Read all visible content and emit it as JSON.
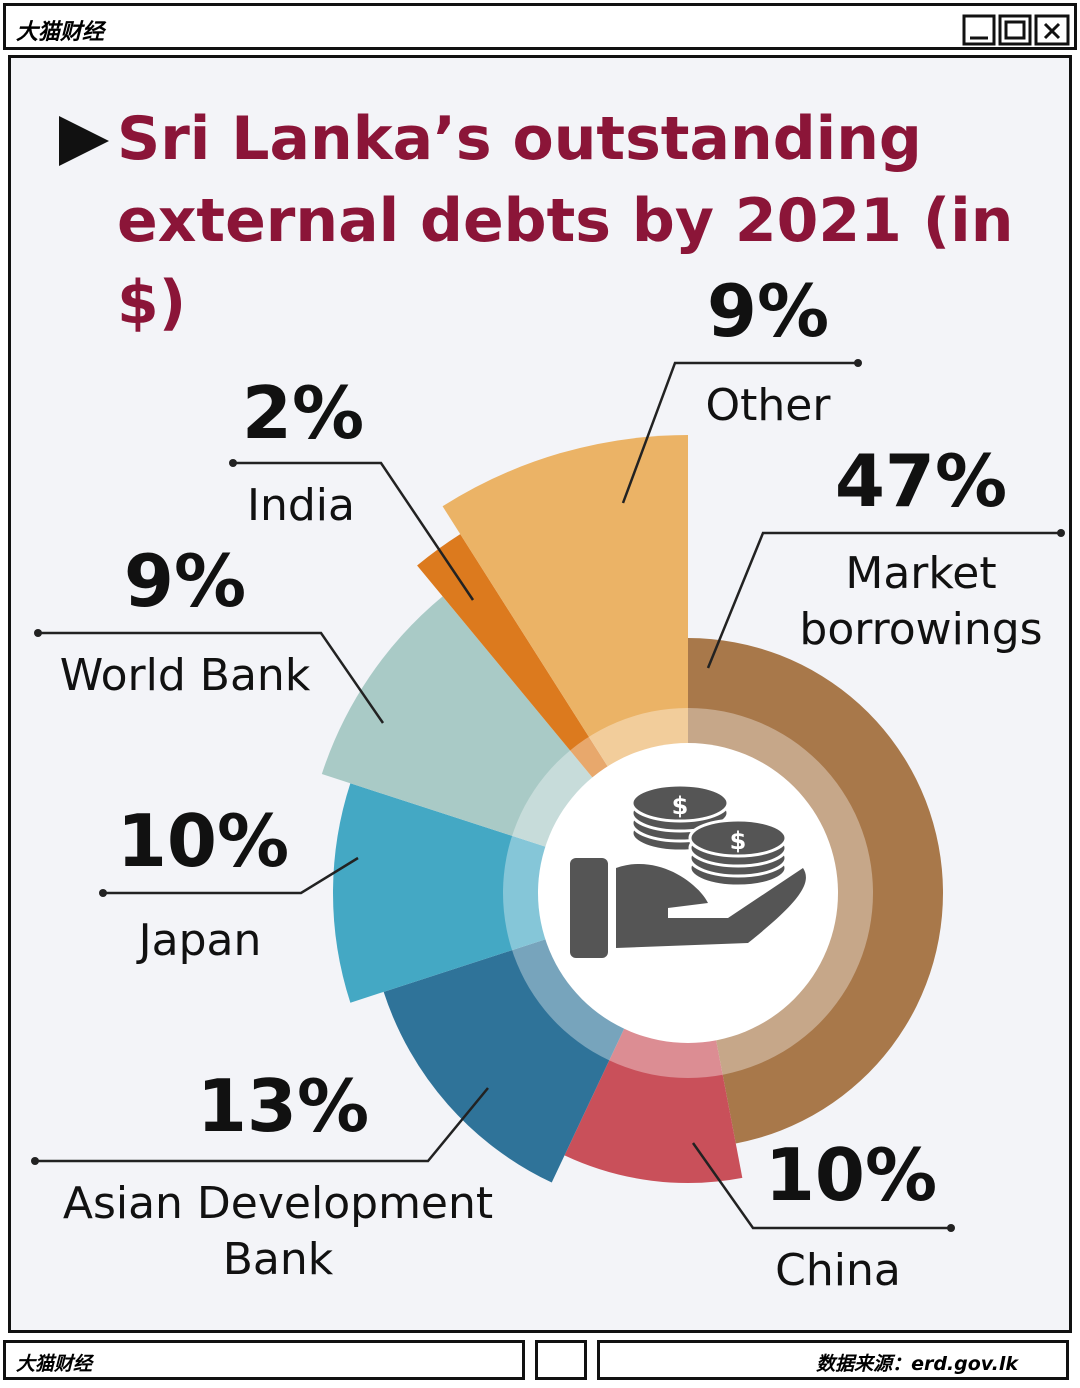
{
  "window": {
    "title": "大猫财经",
    "footer_left": "大猫财经",
    "source": "数据来源：erd.gov.lk"
  },
  "chart_data": {
    "type": "pie",
    "title": "Sri Lanka’s outstanding external debts by 2021 (in $)",
    "categories": [
      "Market borrowings",
      "China",
      "Asian Development Bank",
      "Japan",
      "World Bank",
      "India",
      "Other"
    ],
    "values": [
      47,
      10,
      13,
      10,
      9,
      2,
      9
    ],
    "value_labels": [
      "47%",
      "10%",
      "13%",
      "10%",
      "9%",
      "2%",
      "9%"
    ],
    "colors": [
      "#a8784a",
      "#c9505a",
      "#2f7399",
      "#44a8c4",
      "#a9cac6",
      "#dc7a1e",
      "#ebb366"
    ]
  }
}
